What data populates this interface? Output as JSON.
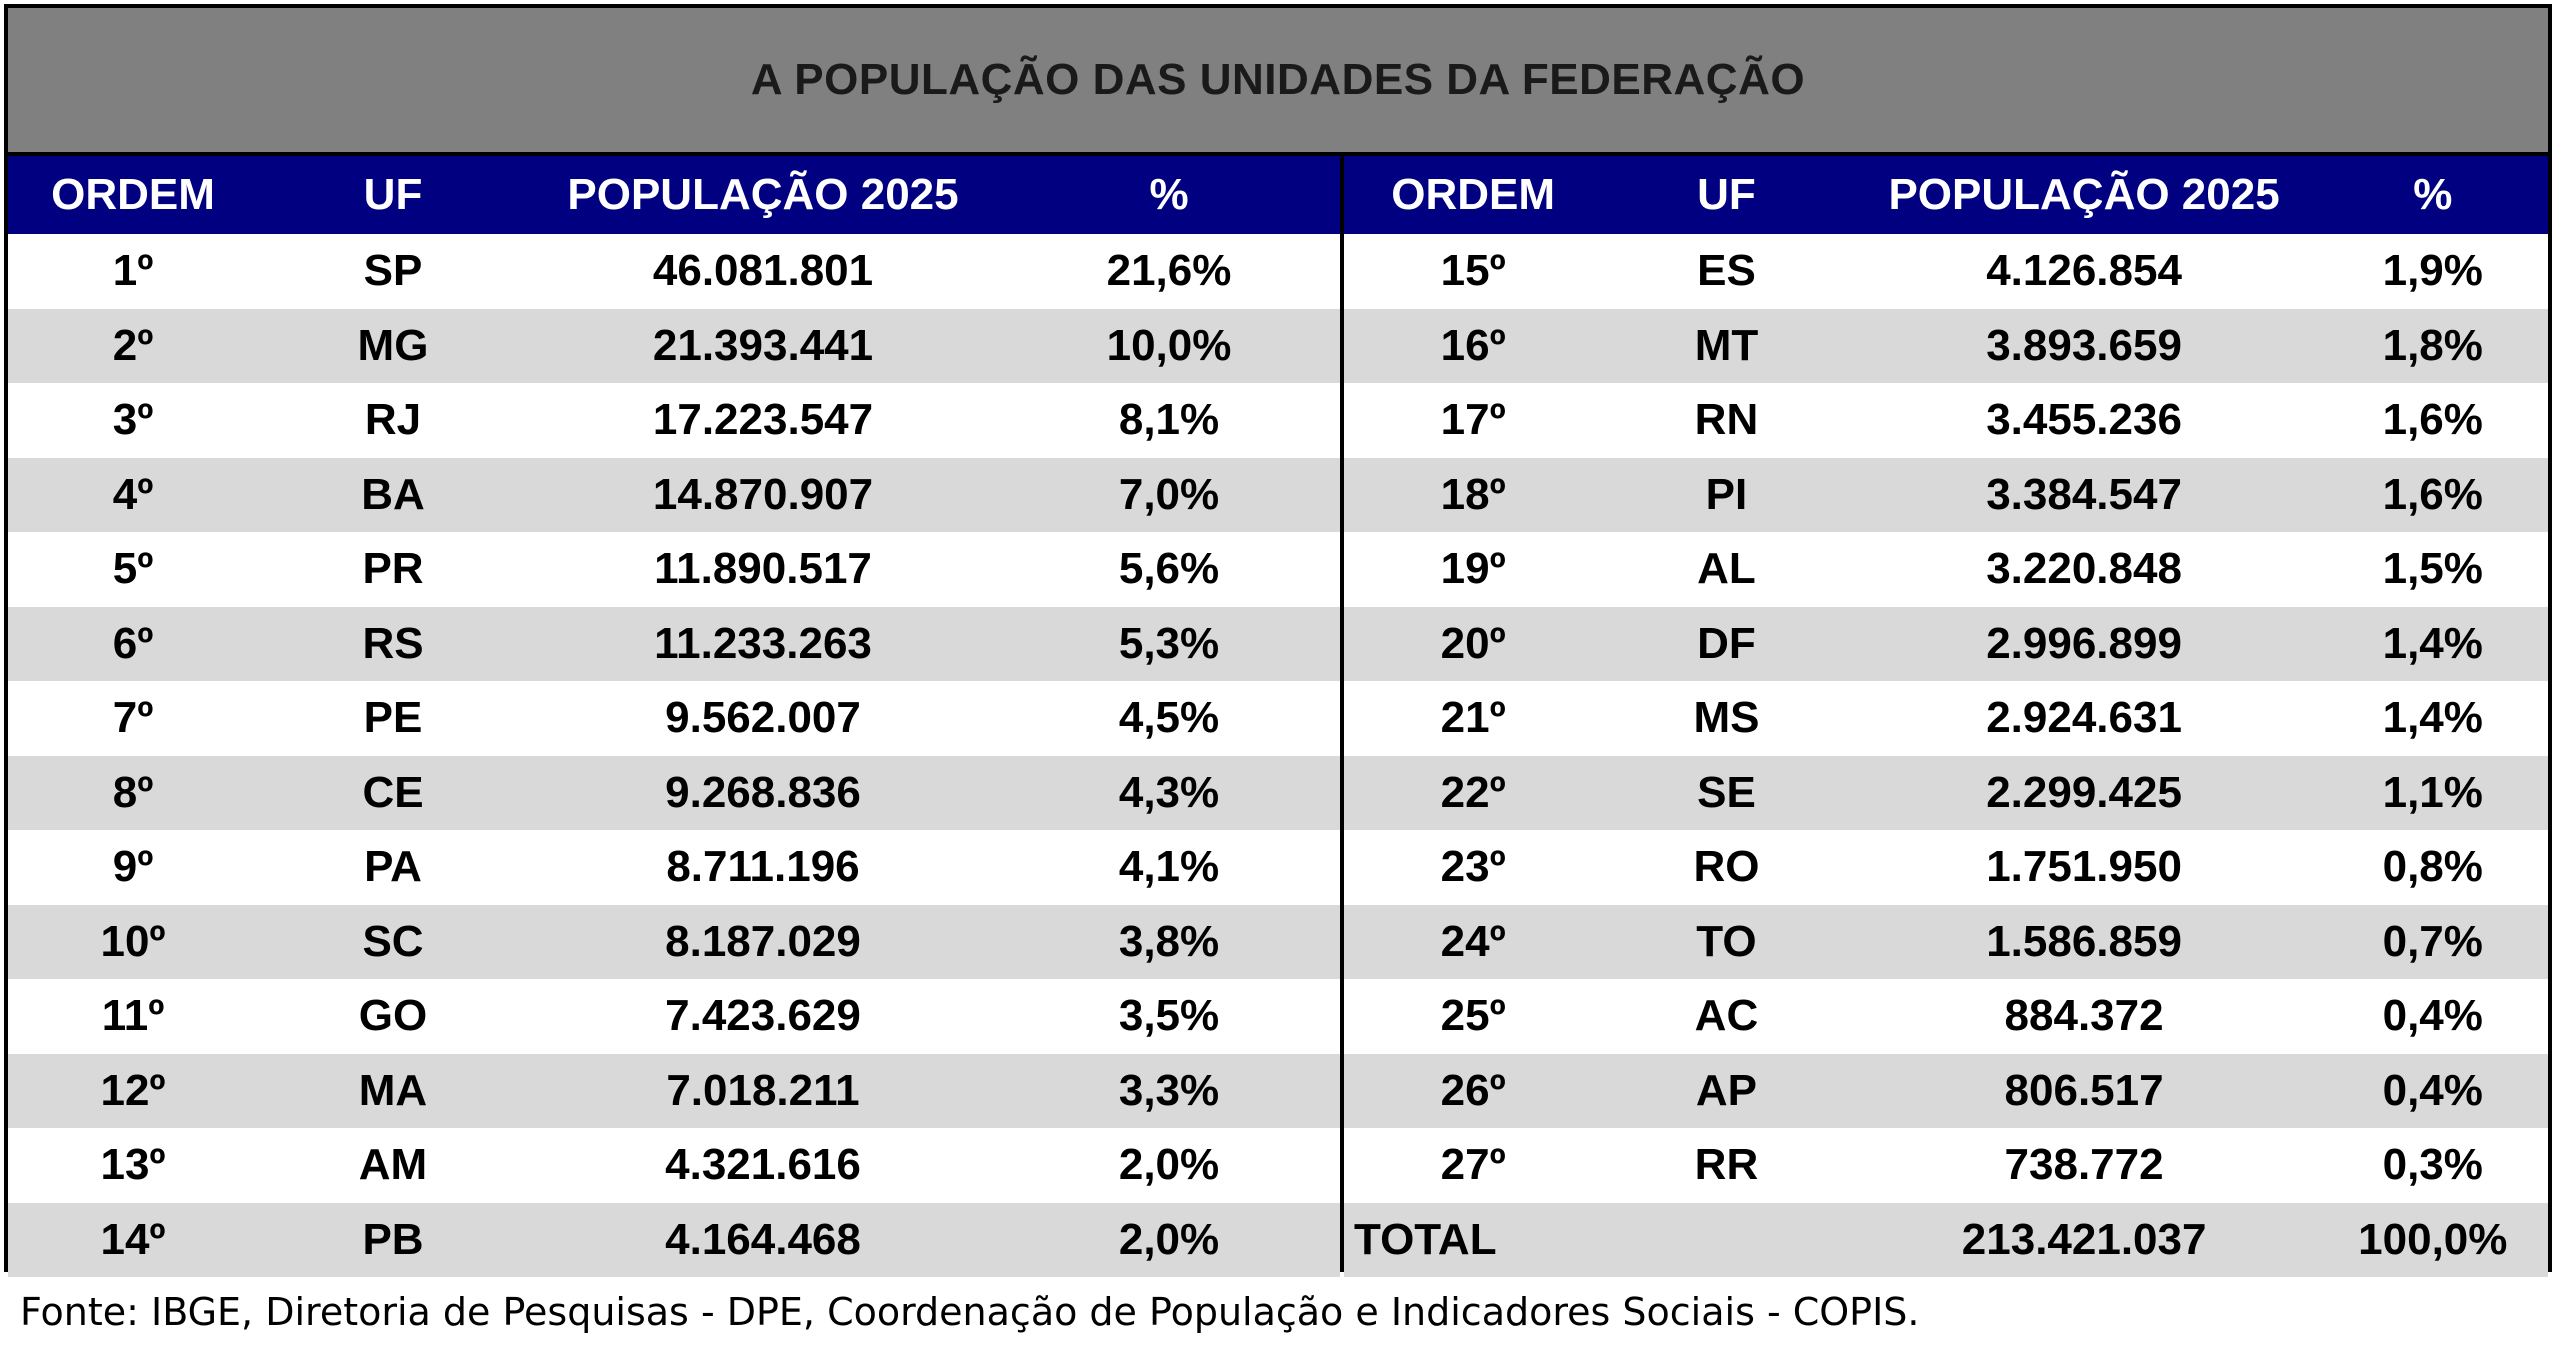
{
  "title": "A POPULAÇÃO DAS UNIDADES DA FEDERAÇÃO",
  "headers": {
    "ordem": "ORDEM",
    "uf": "UF",
    "populacao": "POPULAÇÃO 2025",
    "pct": "%"
  },
  "left_rows": [
    {
      "ordem": "1º",
      "uf": "SP",
      "populacao": "46.081.801",
      "pct": "21,6%"
    },
    {
      "ordem": "2º",
      "uf": "MG",
      "populacao": "21.393.441",
      "pct": "10,0%"
    },
    {
      "ordem": "3º",
      "uf": "RJ",
      "populacao": "17.223.547",
      "pct": "8,1%"
    },
    {
      "ordem": "4º",
      "uf": "BA",
      "populacao": "14.870.907",
      "pct": "7,0%"
    },
    {
      "ordem": "5º",
      "uf": "PR",
      "populacao": "11.890.517",
      "pct": "5,6%"
    },
    {
      "ordem": "6º",
      "uf": "RS",
      "populacao": "11.233.263",
      "pct": "5,3%"
    },
    {
      "ordem": "7º",
      "uf": "PE",
      "populacao": "9.562.007",
      "pct": "4,5%"
    },
    {
      "ordem": "8º",
      "uf": "CE",
      "populacao": "9.268.836",
      "pct": "4,3%"
    },
    {
      "ordem": "9º",
      "uf": "PA",
      "populacao": "8.711.196",
      "pct": "4,1%"
    },
    {
      "ordem": "10º",
      "uf": "SC",
      "populacao": "8.187.029",
      "pct": "3,8%"
    },
    {
      "ordem": "11º",
      "uf": "GO",
      "populacao": "7.423.629",
      "pct": "3,5%"
    },
    {
      "ordem": "12º",
      "uf": "MA",
      "populacao": "7.018.211",
      "pct": "3,3%"
    },
    {
      "ordem": "13º",
      "uf": "AM",
      "populacao": "4.321.616",
      "pct": "2,0%"
    },
    {
      "ordem": "14º",
      "uf": "PB",
      "populacao": "4.164.468",
      "pct": "2,0%"
    }
  ],
  "right_rows": [
    {
      "ordem": "15º",
      "uf": "ES",
      "populacao": "4.126.854",
      "pct": "1,9%"
    },
    {
      "ordem": "16º",
      "uf": "MT",
      "populacao": "3.893.659",
      "pct": "1,8%"
    },
    {
      "ordem": "17º",
      "uf": "RN",
      "populacao": "3.455.236",
      "pct": "1,6%"
    },
    {
      "ordem": "18º",
      "uf": "PI",
      "populacao": "3.384.547",
      "pct": "1,6%"
    },
    {
      "ordem": "19º",
      "uf": "AL",
      "populacao": "3.220.848",
      "pct": "1,5%"
    },
    {
      "ordem": "20º",
      "uf": "DF",
      "populacao": "2.996.899",
      "pct": "1,4%"
    },
    {
      "ordem": "21º",
      "uf": "MS",
      "populacao": "2.924.631",
      "pct": "1,4%"
    },
    {
      "ordem": "22º",
      "uf": "SE",
      "populacao": "2.299.425",
      "pct": "1,1%"
    },
    {
      "ordem": "23º",
      "uf": "RO",
      "populacao": "1.751.950",
      "pct": "0,8%"
    },
    {
      "ordem": "24º",
      "uf": "TO",
      "populacao": "1.586.859",
      "pct": "0,7%"
    },
    {
      "ordem": "25º",
      "uf": "AC",
      "populacao": "884.372",
      "pct": "0,4%"
    },
    {
      "ordem": "26º",
      "uf": "AP",
      "populacao": "806.517",
      "pct": "0,4%"
    },
    {
      "ordem": "27º",
      "uf": "RR",
      "populacao": "738.772",
      "pct": "0,3%"
    }
  ],
  "total": {
    "label": "TOTAL",
    "populacao": "213.421.037",
    "pct": "100,0%"
  },
  "source": "Fonte: IBGE, Diretoria de Pesquisas - DPE, Coordenação de População e Indicadores Sociais - COPIS.",
  "colors": {
    "header_bg": "#000080",
    "title_bg": "#808080",
    "stripe": "#d9d9d9"
  }
}
